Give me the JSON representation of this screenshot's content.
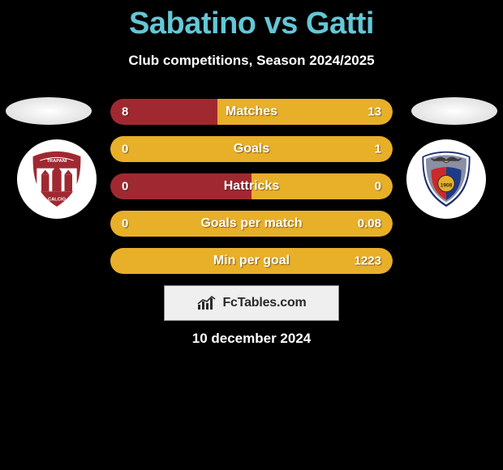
{
  "title": "Sabatino vs Gatti",
  "subtitle": "Club competitions, Season 2024/2025",
  "date": "10 december 2024",
  "brand": "FcTables.com",
  "colors": {
    "title": "#63c7d6",
    "pill_left": "#a02931",
    "pill_right": "#e8af29",
    "badge_bg": "#ffffff",
    "brand_bg": "#efefef"
  },
  "badges": {
    "left": {
      "name": "trapani-calcio",
      "primary": "#a02931",
      "secondary": "#ffffff"
    },
    "right": {
      "name": "casertana-fc",
      "primary": "#1c3b8a",
      "secondary": "#c92a2a",
      "accent": "#e8af29"
    }
  },
  "rows": [
    {
      "label": "Matches",
      "left": "8",
      "right": "13",
      "left_pct": 38,
      "right_pct": 62
    },
    {
      "label": "Goals",
      "left": "0",
      "right": "1",
      "left_pct": 0,
      "right_pct": 100
    },
    {
      "label": "Hattricks",
      "left": "0",
      "right": "0",
      "left_pct": 50,
      "right_pct": 50
    },
    {
      "label": "Goals per match",
      "left": "0",
      "right": "0.08",
      "left_pct": 0,
      "right_pct": 100
    },
    {
      "label": "Min per goal",
      "left": "",
      "right": "1223",
      "left_pct": 0,
      "right_pct": 100
    }
  ]
}
